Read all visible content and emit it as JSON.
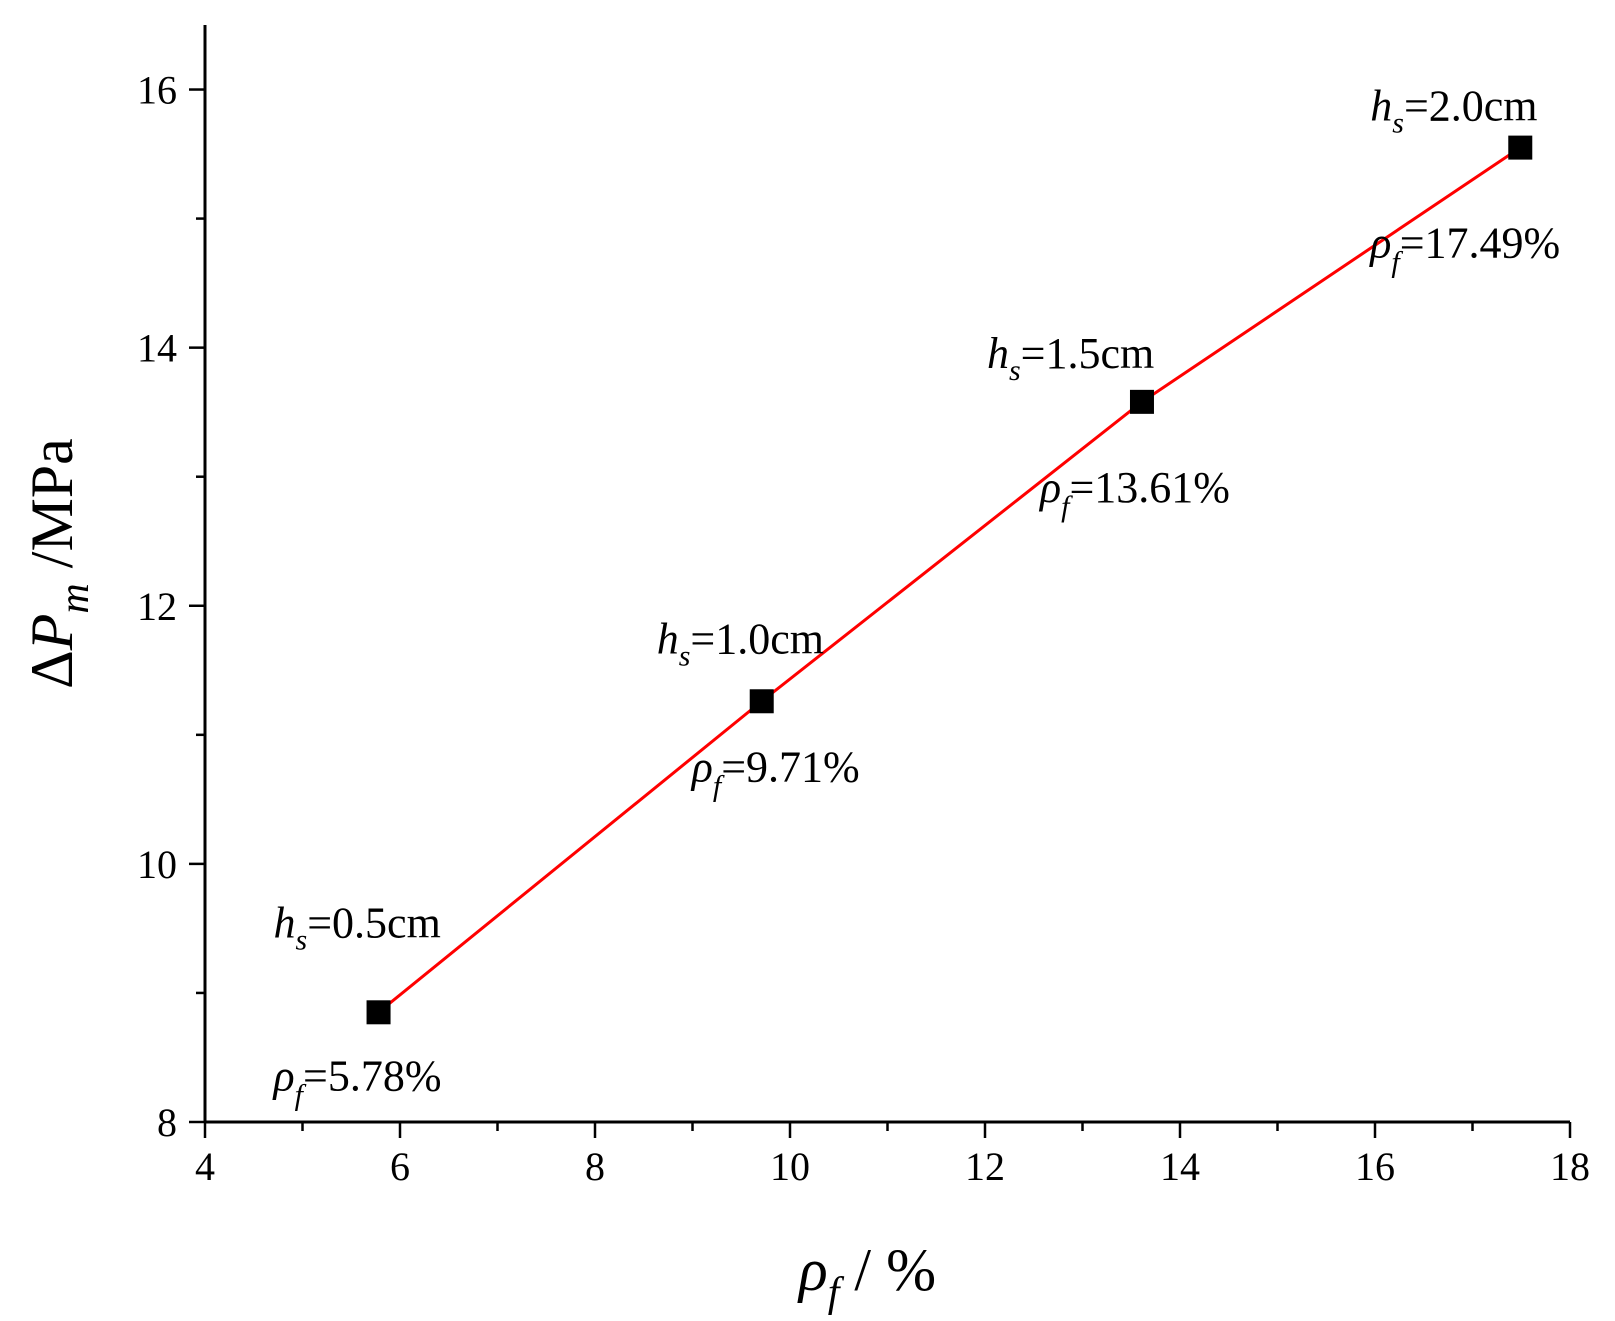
{
  "chart_data": {
    "type": "line",
    "title": "",
    "xlabel": {
      "symbol": "ρ",
      "subscript": "f",
      "suffix": " / %"
    },
    "ylabel": {
      "prefix": "Δ",
      "symbol": "P",
      "subscript": "m",
      "suffix": " /MPa"
    },
    "xlim": [
      4,
      18
    ],
    "ylim": [
      8,
      16.5
    ],
    "xticks": [
      4,
      6,
      8,
      10,
      12,
      14,
      16,
      18
    ],
    "yticks": [
      8,
      10,
      12,
      14,
      16
    ],
    "x_minor_step": 1,
    "y_minor_step": 1,
    "grid": false,
    "legend": "none",
    "line_color": "#ff0000",
    "marker_color": "#000000",
    "marker": "square",
    "points": [
      {
        "x": 5.78,
        "y": 8.85,
        "h_label": {
          "symbol": "h",
          "subscript": "s",
          "value": "=0.5cm"
        },
        "rho_label": {
          "symbol": "ρ",
          "subscript": "f",
          "value": "=5.78%"
        }
      },
      {
        "x": 9.71,
        "y": 11.26,
        "h_label": {
          "symbol": "h",
          "subscript": "s",
          "value": "=1.0cm"
        },
        "rho_label": {
          "symbol": "ρ",
          "subscript": "f",
          "value": "=9.71%"
        }
      },
      {
        "x": 13.61,
        "y": 13.58,
        "h_label": {
          "symbol": "h",
          "subscript": "s",
          "value": "=1.5cm"
        },
        "rho_label": {
          "symbol": "ρ",
          "subscript": "f",
          "value": "=13.61%"
        }
      },
      {
        "x": 17.49,
        "y": 15.55,
        "h_label": {
          "symbol": "h",
          "subscript": "s",
          "value": "=2.0cm"
        },
        "rho_label": {
          "symbol": "ρ",
          "subscript": "f",
          "value": "=17.49%"
        }
      }
    ]
  }
}
